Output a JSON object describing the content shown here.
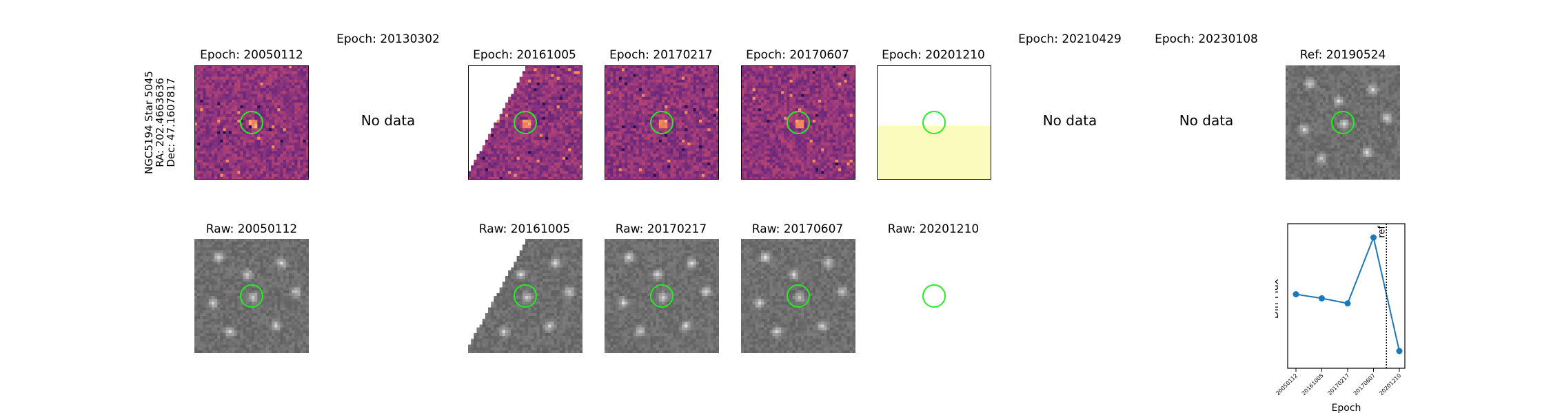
{
  "target": {
    "name": "NGC5194 Star 5045",
    "ra": "RA: 202.4663636",
    "dec": "Dec: 47.1607817"
  },
  "no_data_label": "No data",
  "diff_row": [
    {
      "title": "Epoch: 20050112",
      "has_data": true
    },
    {
      "title": "Epoch: 20130302",
      "has_data": false
    },
    {
      "title": "Epoch: 20161005",
      "has_data": true
    },
    {
      "title": "Epoch: 20170217",
      "has_data": true
    },
    {
      "title": "Epoch: 20170607",
      "has_data": true
    },
    {
      "title": "Epoch: 20201210",
      "has_data": true
    },
    {
      "title": "Epoch: 20210429",
      "has_data": false
    },
    {
      "title": "Epoch: 20230108",
      "has_data": false
    },
    {
      "title": "Ref: 20190524",
      "has_data": true
    }
  ],
  "raw_row": [
    {
      "title": "Raw: 20050112"
    },
    {
      "title": "Raw: 20161005"
    },
    {
      "title": "Raw: 20170217"
    },
    {
      "title": "Raw: 20170607"
    },
    {
      "title": "Raw: 20201210"
    }
  ],
  "colors": {
    "circle": "#22ee22",
    "line": "#1f77b4",
    "magma_dark": "#4a1c6e",
    "magma_mid": "#b0407a",
    "pale_yellow": "#fbfbbe"
  },
  "chart_data": {
    "type": "line",
    "x": [
      "20050112",
      "20161005",
      "20170217",
      "20170607",
      "20201210"
    ],
    "y": [
      0.44,
      0.4,
      0.35,
      1.0,
      -0.12
    ],
    "xlabel": "Epoch",
    "ylabel": "Diff Flux",
    "ref_label": "ref",
    "ref_position_between": [
      "20170607",
      "20201210"
    ],
    "yticks_shown": false
  }
}
